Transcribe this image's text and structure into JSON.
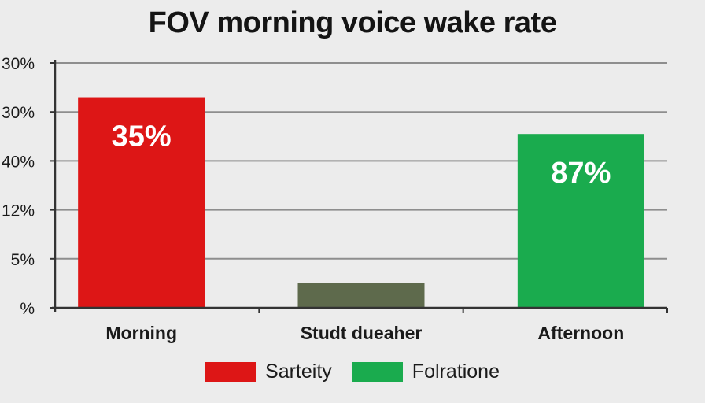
{
  "chart_data": {
    "type": "bar",
    "title": "FOV morning voice wake rate",
    "xlabel": "",
    "ylabel": "",
    "y_tick_labels": [
      "%",
      "5%",
      "12%",
      "40%",
      "30%",
      "30%"
    ],
    "ylim": [
      0,
      5
    ],
    "grid": true,
    "categories": [
      "Morning",
      "Studt dueaher",
      "Afternoon"
    ],
    "values": [
      4.3,
      0.5,
      3.55
    ],
    "data_labels": [
      "35%",
      "",
      "87%"
    ],
    "bar_colors": [
      "#dd1616",
      "#5e6a4c",
      "#1aab4e"
    ],
    "legend_position": "bottom",
    "legend": [
      {
        "label": "Sarteity",
        "color": "#dd1616"
      },
      {
        "label": "Folratione",
        "color": "#1aab4e"
      }
    ]
  }
}
